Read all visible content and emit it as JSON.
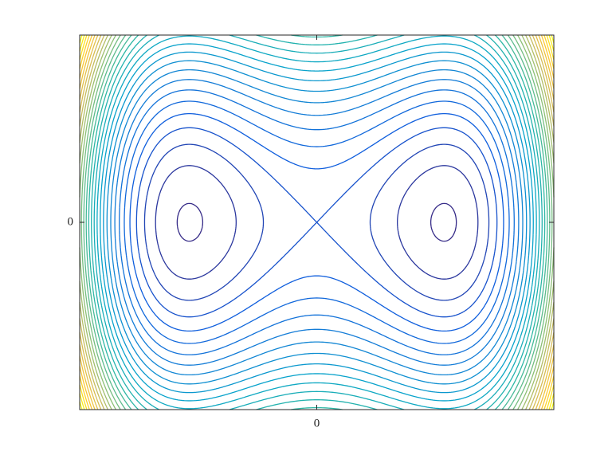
{
  "chart_data": {
    "type": "contour",
    "xlim": [
      -1.86,
      1.86
    ],
    "ylim": [
      -1.4,
      1.4
    ],
    "xticks": [
      0
    ],
    "yticks": [
      0
    ],
    "levels": [
      -0.24,
      -0.16,
      -0.08,
      0,
      0.08,
      0.16,
      0.24,
      0.32,
      0.4,
      0.48,
      0.56,
      0.64,
      0.72,
      0.8,
      0.88,
      0.96,
      1.04,
      1.12,
      1.2,
      1.28,
      1.36,
      1.44,
      1.52,
      1.6,
      1.68,
      1.76,
      1.84,
      1.92,
      2.0,
      2.08,
      2.16
    ],
    "colormap": [
      "#352a87",
      "#0f5cdd",
      "#1481d6",
      "#06a4ca",
      "#2eb7a4",
      "#87bf77",
      "#d1bb59",
      "#fec832",
      "#f9fb0e"
    ]
  }
}
